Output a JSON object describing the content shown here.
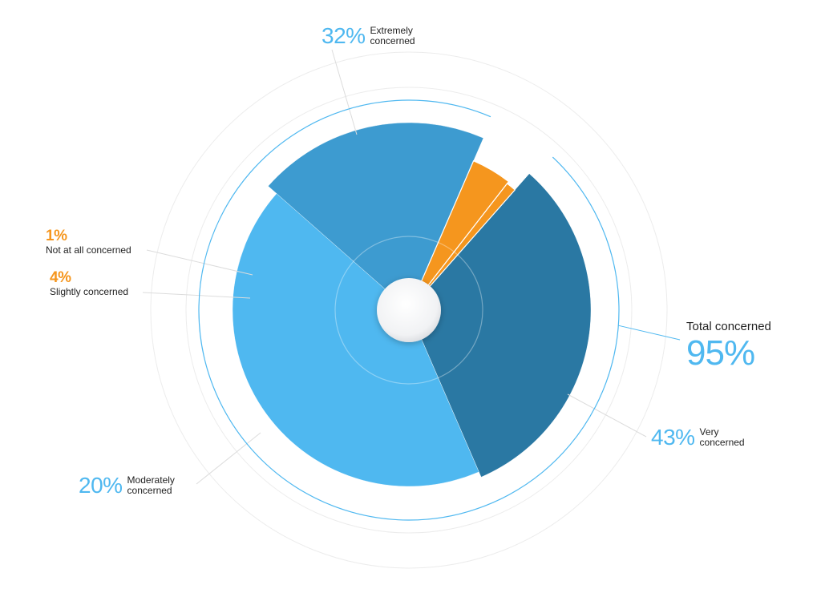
{
  "chart_data": {
    "type": "pie",
    "title": "",
    "slices": [
      {
        "label": "Extremely concerned",
        "value": 32,
        "display": "32%",
        "color": "#2a78a3"
      },
      {
        "label": "Very concerned",
        "value": 43,
        "display": "43%",
        "color": "#4fb8f0"
      },
      {
        "label": "Moderately concerned",
        "value": 20,
        "display": "20%",
        "color": "#3d9bd0"
      },
      {
        "label": "Slightly concerned",
        "value": 4,
        "display": "4%",
        "color": "#f5961e"
      },
      {
        "label": "Not at all concerned",
        "value": 1,
        "display": "1%",
        "color": "#f5961e"
      }
    ],
    "total": {
      "label": "Total concerned",
      "value": 95,
      "display": "95%"
    }
  },
  "labels": {
    "extremely": {
      "pct": "32%",
      "line1": "Extremely",
      "line2": "concerned"
    },
    "very": {
      "pct": "43%",
      "line1": "Very",
      "line2": "concerned"
    },
    "moderately": {
      "pct": "20%",
      "line1": "Moderately",
      "line2": "concerned"
    },
    "slightly": {
      "pct": "4%",
      "text": "Slightly concerned"
    },
    "not_at_all": {
      "pct": "1%",
      "text": "Not at all concerned"
    },
    "total": {
      "title": "Total concerned",
      "value": "95%"
    }
  },
  "colors": {
    "light_blue": "#4fb8f0",
    "orange": "#f5961e",
    "text": "#222222",
    "grid": "#e8e8e8"
  }
}
